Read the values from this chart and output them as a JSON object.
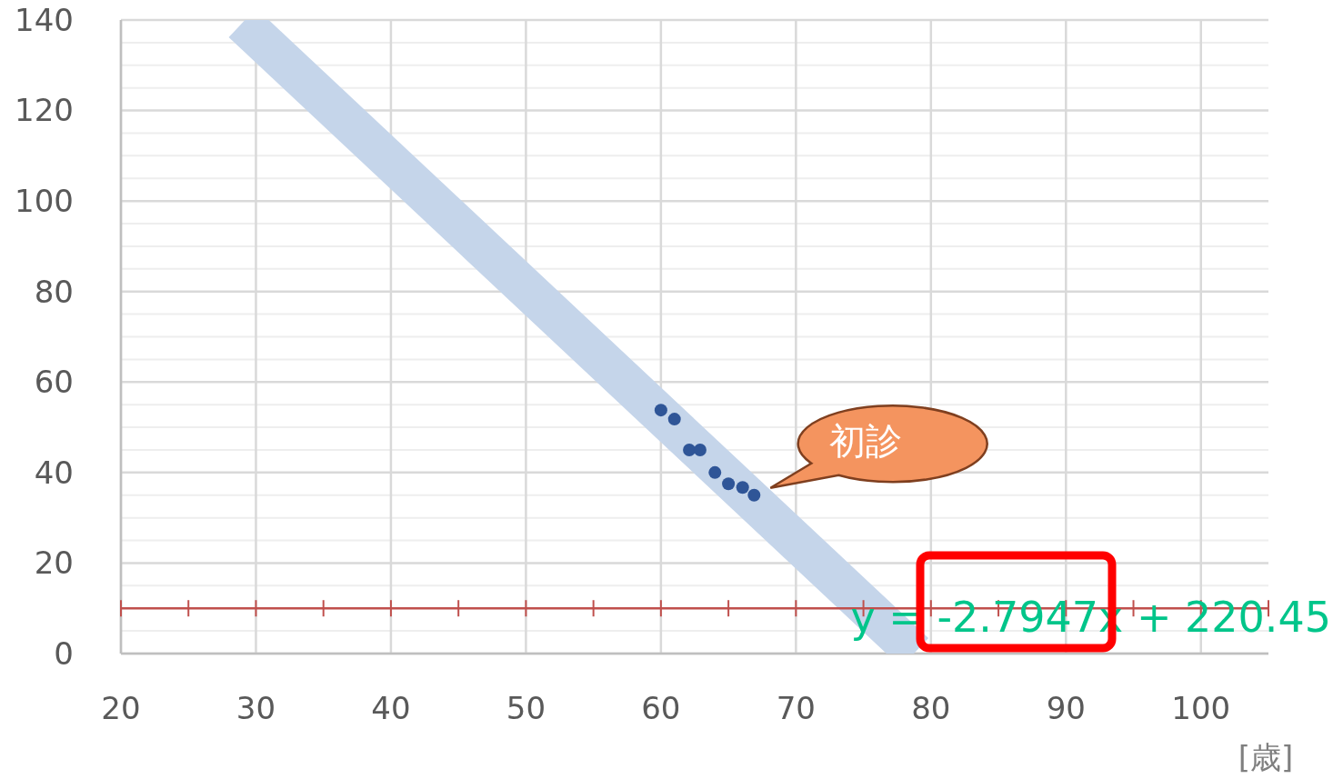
{
  "chart_data": {
    "type": "scatter",
    "xlabel": "[歳]",
    "xlim": [
      20,
      105
    ],
    "ylim": [
      0,
      140
    ],
    "xticks": [
      20,
      30,
      40,
      50,
      60,
      70,
      80,
      90,
      100
    ],
    "yticks": [
      0,
      {
        "value": 5,
        "label": null
      },
      {
        "value": 10,
        "label": null
      },
      {
        "value": 15,
        "label": null
      },
      20,
      {
        "value": 25,
        "label": null
      },
      {
        "value": 30,
        "label": null
      },
      {
        "value": 35,
        "label": null
      },
      40,
      {
        "value": 45,
        "label": null
      },
      {
        "value": 50,
        "label": null
      },
      {
        "value": 55,
        "label": null
      },
      60,
      {
        "value": 65,
        "label": null
      },
      {
        "value": 70,
        "label": null
      },
      {
        "value": 75,
        "label": null
      },
      80,
      {
        "value": 85,
        "label": null
      },
      {
        "value": 90,
        "label": null
      },
      {
        "value": 95,
        "label": null
      },
      100,
      {
        "value": 105,
        "label": null
      },
      {
        "value": 110,
        "label": null
      },
      {
        "value": 115,
        "label": null
      },
      120,
      {
        "value": 125,
        "label": null
      },
      {
        "value": 130,
        "label": null
      },
      {
        "value": 135,
        "label": null
      },
      140
    ],
    "grid": true,
    "marker": "circle",
    "series": [
      {
        "type": "line",
        "marker": "none",
        "color": "#c5d5ea",
        "x": [
          29,
          78.8
        ],
        "values": [
          139.4,
          0.2
        ]
      },
      {
        "color": "#2f5597",
        "x": [
          60,
          61,
          62.1,
          62.9,
          64,
          65,
          66.05,
          66.9
        ],
        "values": [
          53.8,
          51.8,
          45,
          45,
          40,
          37.5,
          36.7,
          35
        ]
      }
    ],
    "ref_lines": [
      {
        "axis": "y",
        "value": 10,
        "color": "#c0504d"
      }
    ],
    "annotations": [
      {
        "text": "初診",
        "x": 66.9,
        "y": 35
      },
      "y = -2.7947x + 220.45"
    ]
  }
}
